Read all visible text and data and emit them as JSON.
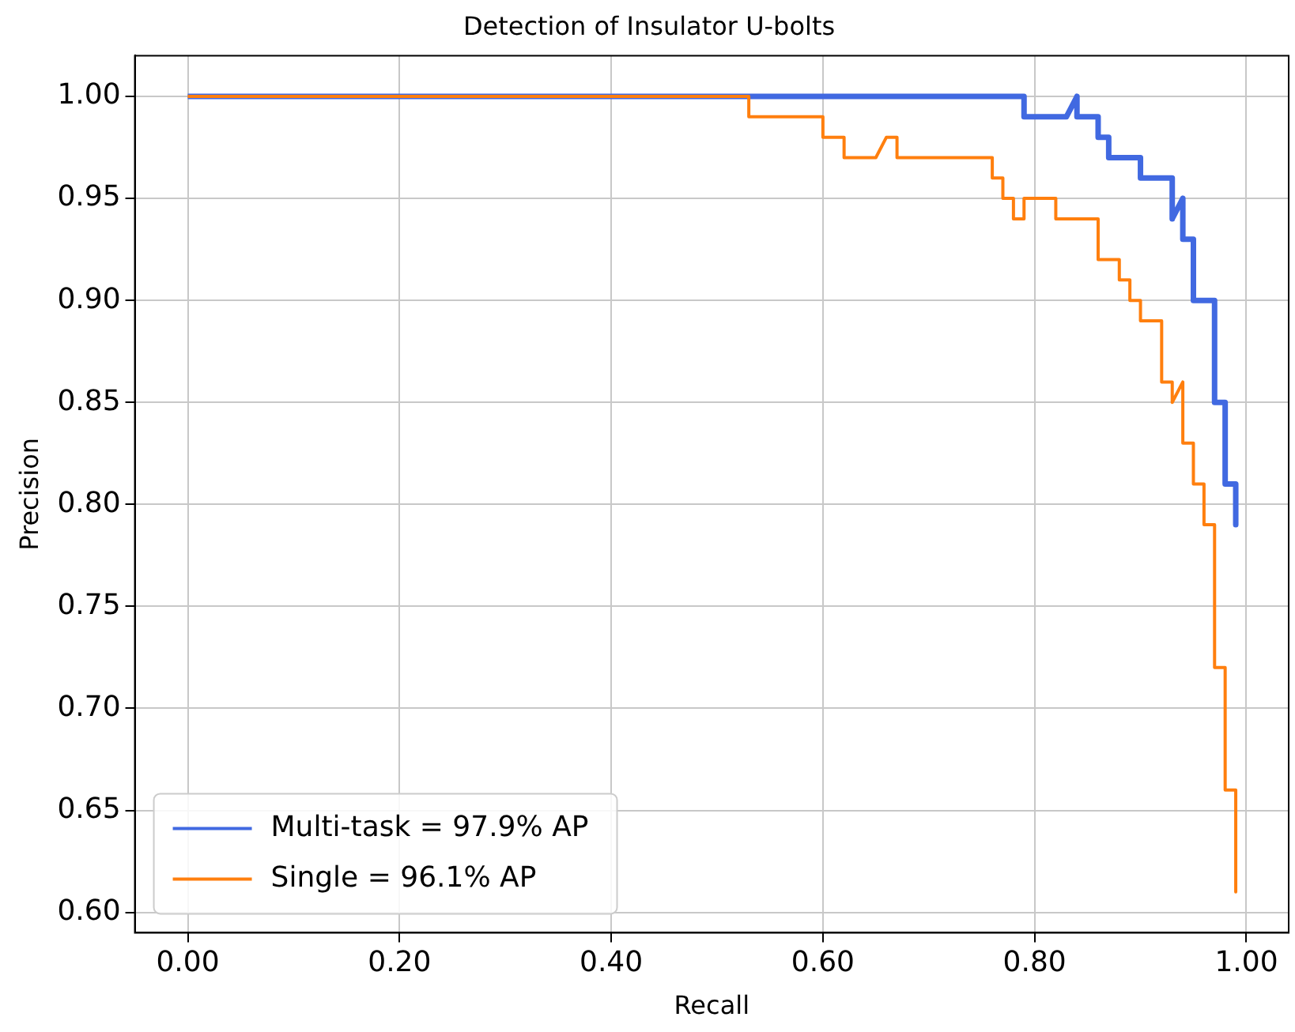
{
  "chart_data": {
    "type": "line",
    "title": "Detection of Insulator U-bolts",
    "xlabel": "Recall",
    "ylabel": "Precision",
    "xlim": [
      -0.05,
      1.04
    ],
    "ylim": [
      0.59,
      1.02
    ],
    "xticks": [
      {
        "value": 0,
        "label": "0.00"
      },
      {
        "value": 0.2,
        "label": "0.20"
      },
      {
        "value": 0.4,
        "label": "0.40"
      },
      {
        "value": 0.6,
        "label": "0.60"
      },
      {
        "value": 0.8,
        "label": "0.80"
      },
      {
        "value": 1,
        "label": "1.00"
      }
    ],
    "yticks": [
      {
        "value": 0.6,
        "label": "0.60"
      },
      {
        "value": 0.65,
        "label": "0.65"
      },
      {
        "value": 0.7,
        "label": "0.70"
      },
      {
        "value": 0.75,
        "label": "0.75"
      },
      {
        "value": 0.8,
        "label": "0.80"
      },
      {
        "value": 0.85,
        "label": "0.85"
      },
      {
        "value": 0.9,
        "label": "0.90"
      },
      {
        "value": 0.95,
        "label": "0.95"
      },
      {
        "value": 1,
        "label": "1.00"
      }
    ],
    "grid": true,
    "legend": "bottom left",
    "marker": "none",
    "line_style": "solid",
    "series": [
      {
        "name": "Multi-task = 97.9% AP",
        "color": "#4169e1",
        "x": [
          0,
          0.79,
          0.79,
          0.83,
          0.84,
          0.84,
          0.86,
          0.86,
          0.87,
          0.87,
          0.9,
          0.9,
          0.93,
          0.93,
          0.94,
          0.94,
          0.95,
          0.95,
          0.97,
          0.97,
          0.98,
          0.98,
          0.99,
          0.99
        ],
        "values": [
          1,
          1,
          0.99,
          0.99,
          1,
          0.99,
          0.99,
          0.98,
          0.98,
          0.97,
          0.97,
          0.96,
          0.96,
          0.94,
          0.95,
          0.93,
          0.93,
          0.9,
          0.9,
          0.85,
          0.85,
          0.81,
          0.81,
          0.79
        ]
      },
      {
        "name": "Single = 96.1% AP",
        "color": "#ff7f0e",
        "x": [
          0,
          0.53,
          0.53,
          0.6,
          0.6,
          0.62,
          0.62,
          0.65,
          0.66,
          0.67,
          0.67,
          0.76,
          0.76,
          0.77,
          0.77,
          0.78,
          0.78,
          0.79,
          0.79,
          0.82,
          0.82,
          0.86,
          0.86,
          0.88,
          0.88,
          0.89,
          0.89,
          0.9,
          0.9,
          0.92,
          0.92,
          0.93,
          0.93,
          0.94,
          0.94,
          0.95,
          0.95,
          0.96,
          0.96,
          0.97,
          0.97,
          0.98,
          0.98,
          0.99,
          0.99
        ],
        "values": [
          1,
          1,
          0.99,
          0.99,
          0.98,
          0.98,
          0.97,
          0.97,
          0.98,
          0.98,
          0.97,
          0.97,
          0.96,
          0.96,
          0.95,
          0.95,
          0.94,
          0.94,
          0.95,
          0.95,
          0.94,
          0.94,
          0.92,
          0.92,
          0.91,
          0.91,
          0.9,
          0.9,
          0.89,
          0.89,
          0.86,
          0.86,
          0.85,
          0.86,
          0.83,
          0.83,
          0.81,
          0.81,
          0.79,
          0.79,
          0.72,
          0.72,
          0.66,
          0.66,
          0.61
        ]
      }
    ]
  }
}
